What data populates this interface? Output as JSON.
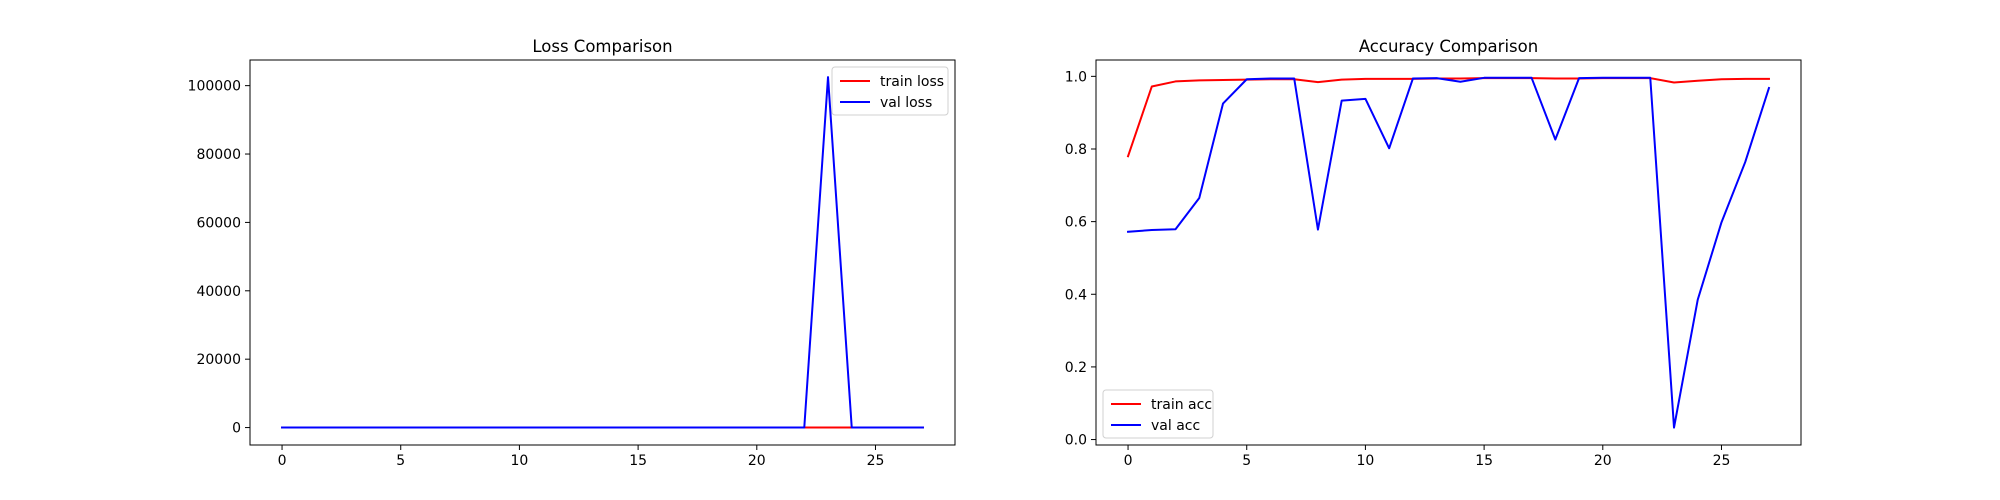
{
  "chart_data": [
    {
      "type": "line",
      "title": "Loss Comparison",
      "xlabel": "",
      "ylabel": "",
      "x": [
        0,
        1,
        2,
        3,
        4,
        5,
        6,
        7,
        8,
        9,
        10,
        11,
        12,
        13,
        14,
        15,
        16,
        17,
        18,
        19,
        20,
        21,
        22,
        23,
        24,
        25,
        26,
        27
      ],
      "xlim": [
        -1.35,
        28.35
      ],
      "ylim": [
        -5100,
        107500
      ],
      "xticks": [
        0,
        5,
        10,
        15,
        20,
        25
      ],
      "yticks": [
        0,
        20000,
        40000,
        60000,
        80000,
        100000
      ],
      "ytick_labels": [
        "0",
        "20000",
        "40000",
        "60000",
        "80000",
        "100000"
      ],
      "legend_position": "upper right",
      "grid": false,
      "series": [
        {
          "name": "train loss",
          "color": "#ff0000",
          "values": [
            0.6,
            0.1,
            0.05,
            0.04,
            0.03,
            0.03,
            0.02,
            0.02,
            0.04,
            0.03,
            0.02,
            0.02,
            0.02,
            0.02,
            0.02,
            0.02,
            0.02,
            0.02,
            0.02,
            0.02,
            0.02,
            0.02,
            0.02,
            0.05,
            0.03,
            0.02,
            0.02,
            0.02
          ]
        },
        {
          "name": "val loss",
          "color": "#0000ff",
          "values": [
            1,
            1,
            1,
            1,
            0.3,
            0.05,
            0.05,
            0.05,
            2,
            0.2,
            0.2,
            0.6,
            0.05,
            0.05,
            0.05,
            0.05,
            0.05,
            0.05,
            0.5,
            0.05,
            0.05,
            0.05,
            0.05,
            102500,
            10,
            5,
            2,
            0.1
          ]
        }
      ]
    },
    {
      "type": "line",
      "title": "Accuracy Comparison",
      "xlabel": "",
      "ylabel": "",
      "x": [
        0,
        1,
        2,
        3,
        4,
        5,
        6,
        7,
        8,
        9,
        10,
        11,
        12,
        13,
        14,
        15,
        16,
        17,
        18,
        19,
        20,
        21,
        22,
        23,
        24,
        25,
        26,
        27
      ],
      "xlim": [
        -1.35,
        28.35
      ],
      "ylim": [
        -0.015,
        1.045
      ],
      "xticks": [
        0,
        5,
        10,
        15,
        20,
        25
      ],
      "yticks": [
        0,
        0.2,
        0.4,
        0.6,
        0.8,
        1.0
      ],
      "ytick_labels": [
        "0.0",
        "0.2",
        "0.4",
        "0.6",
        "0.8",
        "1.0"
      ],
      "legend_position": "lower left",
      "grid": false,
      "series": [
        {
          "name": "train acc",
          "color": "#ff0000",
          "values": [
            0.78,
            0.972,
            0.986,
            0.989,
            0.99,
            0.991,
            0.992,
            0.992,
            0.984,
            0.991,
            0.993,
            0.993,
            0.993,
            0.994,
            0.994,
            0.995,
            0.995,
            0.995,
            0.994,
            0.994,
            0.995,
            0.995,
            0.995,
            0.983,
            0.988,
            0.992,
            0.993,
            0.993
          ]
        },
        {
          "name": "val acc",
          "color": "#0000ff",
          "values": [
            0.572,
            0.577,
            0.579,
            0.665,
            0.925,
            0.992,
            0.994,
            0.994,
            0.578,
            0.933,
            0.938,
            0.802,
            0.994,
            0.995,
            0.985,
            0.996,
            0.996,
            0.996,
            0.826,
            0.995,
            0.996,
            0.996,
            0.996,
            0.033,
            0.385,
            0.598,
            0.764,
            0.968
          ]
        }
      ]
    }
  ]
}
